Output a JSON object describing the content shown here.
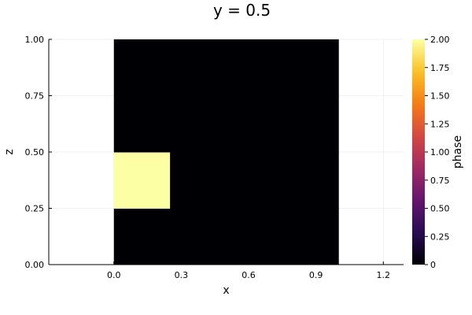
{
  "chart_data": {
    "type": "heatmap",
    "title": "y = 0.5",
    "xlabel": "x",
    "ylabel": "z",
    "xlim": [
      -0.29,
      1.29
    ],
    "ylim": [
      0.0,
      1.0
    ],
    "xticks": [
      0.0,
      0.3,
      0.6,
      0.9,
      1.2
    ],
    "xtick_labels": [
      "0.0",
      "0.3",
      "0.6",
      "0.9",
      "1.2"
    ],
    "yticks": [
      0.0,
      0.25,
      0.5,
      0.75,
      1.0
    ],
    "ytick_labels": [
      "0.00",
      "0.25",
      "0.50",
      "0.75",
      "1.00"
    ],
    "grid": true,
    "x_edges": [
      0.0,
      0.25,
      0.5,
      0.75,
      1.0
    ],
    "z_edges": [
      0.0,
      0.25,
      0.5,
      0.75,
      1.0
    ],
    "values": [
      [
        0,
        0,
        0,
        0
      ],
      [
        2,
        0,
        0,
        0
      ],
      [
        0,
        0,
        0,
        0
      ],
      [
        0,
        0,
        0,
        0
      ]
    ],
    "colorbar": {
      "label": "phase",
      "colormap": "inferno-like",
      "range": [
        0,
        2
      ],
      "ticks": [
        0,
        0.25,
        0.5,
        0.75,
        1.0,
        1.25,
        1.5,
        1.75,
        2.0
      ],
      "tick_labels": [
        "0",
        "0.25",
        "0.50",
        "0.75",
        "1.00",
        "1.25",
        "1.50",
        "1.75",
        "2.00"
      ],
      "stops": [
        "#000004",
        "#280b53",
        "#65156e",
        "#9f2a63",
        "#d44842",
        "#f57d15",
        "#fac127",
        "#fcffa4"
      ]
    }
  }
}
